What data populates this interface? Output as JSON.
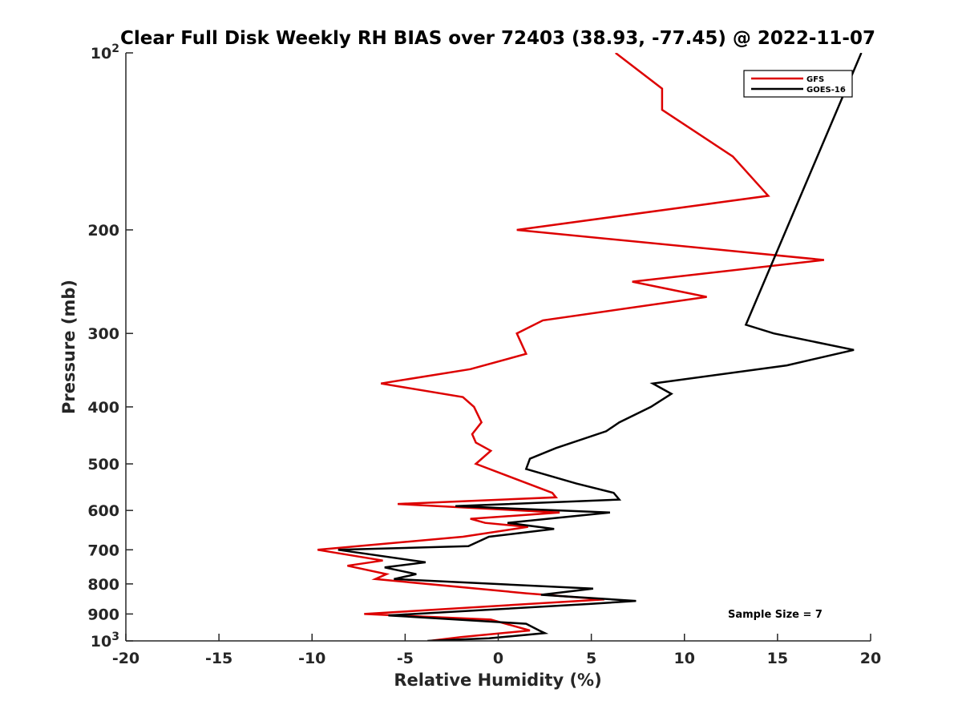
{
  "chart_data": {
    "type": "line",
    "title": "Clear Full Disk Weekly RH BIAS over 72403 (38.93, -77.45) @ 2022-11-07",
    "xlabel": "Relative Humidity (%)",
    "ylabel": "Pressure (mb)",
    "xlim": [
      -20,
      20
    ],
    "ylim": [
      100,
      1000
    ],
    "y_scale": "log",
    "y_reversed": true,
    "x_ticks": [
      -20,
      -15,
      -10,
      -5,
      0,
      5,
      10,
      15,
      20
    ],
    "x_tick_labels": [
      "-20",
      "-15",
      "-10",
      "-5",
      "0",
      "5",
      "10",
      "15",
      "20"
    ],
    "y_ticks": [
      100,
      200,
      300,
      400,
      500,
      600,
      700,
      800,
      900,
      1000
    ],
    "y_tick_labels": [
      {
        "base": "10",
        "exp": "2"
      },
      {
        "base": "200"
      },
      {
        "base": "300"
      },
      {
        "base": "400"
      },
      {
        "base": "500"
      },
      {
        "base": "600"
      },
      {
        "base": "700"
      },
      {
        "base": "800"
      },
      {
        "base": "900"
      },
      {
        "base": "10",
        "exp": "3"
      }
    ],
    "grid": false,
    "legend_position": "top-right",
    "annotation": "Sample Size = 7",
    "series": [
      {
        "name": "GFS",
        "color": "#dd0000",
        "points": [
          [
            6.3,
            100
          ],
          [
            8.8,
            115
          ],
          [
            8.8,
            125
          ],
          [
            12.6,
            150
          ],
          [
            14.5,
            175
          ],
          [
            1.0,
            200
          ],
          [
            17.5,
            225
          ],
          [
            7.2,
            245
          ],
          [
            11.2,
            260
          ],
          [
            2.4,
            285
          ],
          [
            1.0,
            300
          ],
          [
            1.5,
            325
          ],
          [
            -1.5,
            345
          ],
          [
            -6.3,
            365
          ],
          [
            -1.9,
            385
          ],
          [
            -1.3,
            400
          ],
          [
            -0.9,
            425
          ],
          [
            -1.4,
            445
          ],
          [
            -1.2,
            460
          ],
          [
            -0.4,
            475
          ],
          [
            -1.2,
            500
          ],
          [
            2.9,
            560
          ],
          [
            3.1,
            570
          ],
          [
            -5.4,
            585
          ],
          [
            3.3,
            605
          ],
          [
            -1.5,
            620
          ],
          [
            -0.7,
            630
          ],
          [
            1.6,
            640
          ],
          [
            -1.9,
            665
          ],
          [
            -9.7,
            700
          ],
          [
            -6.2,
            730
          ],
          [
            -8.1,
            745
          ],
          [
            -6.0,
            770
          ],
          [
            -6.6,
            785
          ],
          [
            1.5,
            830
          ],
          [
            5.7,
            850
          ],
          [
            -7.2,
            900
          ],
          [
            -0.4,
            920
          ],
          [
            1.7,
            960
          ],
          [
            -2.0,
            985
          ],
          [
            -3.7,
            1000
          ]
        ]
      },
      {
        "name": "GOES-16",
        "color": "#000000",
        "points": [
          [
            19.5,
            100
          ],
          [
            13.3,
            290
          ],
          [
            14.8,
            300
          ],
          [
            19.1,
            320
          ],
          [
            15.5,
            340
          ],
          [
            8.3,
            365
          ],
          [
            9.3,
            380
          ],
          [
            8.2,
            400
          ],
          [
            6.5,
            425
          ],
          [
            5.8,
            440
          ],
          [
            3.1,
            470
          ],
          [
            1.7,
            490
          ],
          [
            1.5,
            510
          ],
          [
            4.2,
            540
          ],
          [
            6.2,
            560
          ],
          [
            6.5,
            575
          ],
          [
            -2.3,
            590
          ],
          [
            6.0,
            605
          ],
          [
            0.5,
            630
          ],
          [
            3.0,
            645
          ],
          [
            -0.5,
            665
          ],
          [
            -1.6,
            690
          ],
          [
            -8.6,
            700
          ],
          [
            -3.9,
            735
          ],
          [
            -6.1,
            750
          ],
          [
            -4.4,
            770
          ],
          [
            -5.6,
            785
          ],
          [
            5.1,
            815
          ],
          [
            2.3,
            835
          ],
          [
            7.4,
            855
          ],
          [
            5.0,
            865
          ],
          [
            -5.9,
            905
          ],
          [
            1.5,
            935
          ],
          [
            2.2,
            960
          ],
          [
            2.5,
            970
          ],
          [
            -0.5,
            990
          ],
          [
            -3.8,
            1000
          ]
        ]
      }
    ]
  }
}
